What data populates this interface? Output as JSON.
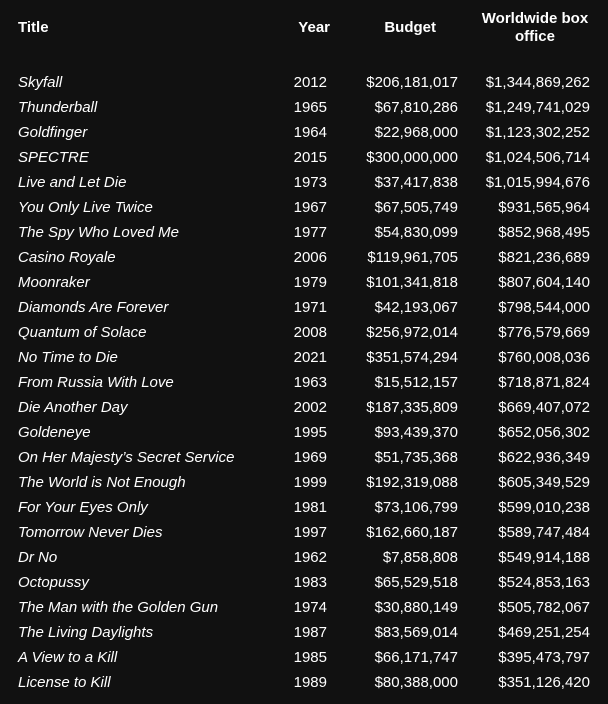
{
  "table": {
    "headers": {
      "title": "Title",
      "year": "Year",
      "budget": "Budget",
      "box_office": "Worldwide box office"
    },
    "rows": [
      {
        "title": "Skyfall",
        "year": "2012",
        "budget": "$206,181,017",
        "box_office": "$1,344,869,262"
      },
      {
        "title": "Thunderball",
        "year": "1965",
        "budget": "$67,810,286",
        "box_office": "$1,249,741,029"
      },
      {
        "title": "Goldfinger",
        "year": "1964",
        "budget": "$22,968,000",
        "box_office": "$1,123,302,252"
      },
      {
        "title": "SPECTRE",
        "year": "2015",
        "budget": "$300,000,000",
        "box_office": "$1,024,506,714"
      },
      {
        "title": "Live and Let Die",
        "year": "1973",
        "budget": "$37,417,838",
        "box_office": "$1,015,994,676"
      },
      {
        "title": "You Only Live Twice",
        "year": "1967",
        "budget": "$67,505,749",
        "box_office": "$931,565,964"
      },
      {
        "title": "The Spy Who Loved Me",
        "year": "1977",
        "budget": "$54,830,099",
        "box_office": "$852,968,495"
      },
      {
        "title": "Casino Royale",
        "year": "2006",
        "budget": "$119,961,705",
        "box_office": "$821,236,689"
      },
      {
        "title": "Moonraker",
        "year": "1979",
        "budget": "$101,341,818",
        "box_office": "$807,604,140"
      },
      {
        "title": "Diamonds Are Forever",
        "year": "1971",
        "budget": "$42,193,067",
        "box_office": "$798,544,000"
      },
      {
        "title": "Quantum of Solace",
        "year": "2008",
        "budget": "$256,972,014",
        "box_office": "$776,579,669"
      },
      {
        "title": "No Time to Die",
        "year": "2021",
        "budget": "$351,574,294",
        "box_office": "$760,008,036"
      },
      {
        "title": "From Russia With Love",
        "year": "1963",
        "budget": "$15,512,157",
        "box_office": "$718,871,824"
      },
      {
        "title": "Die Another Day",
        "year": "2002",
        "budget": "$187,335,809",
        "box_office": "$669,407,072"
      },
      {
        "title": "Goldeneye",
        "year": "1995",
        "budget": "$93,439,370",
        "box_office": "$652,056,302"
      },
      {
        "title": "On Her Majesty’s Secret Service",
        "year": "1969",
        "budget": "$51,735,368",
        "box_office": "$622,936,349"
      },
      {
        "title": "The World is Not Enough",
        "year": "1999",
        "budget": "$192,319,088",
        "box_office": "$605,349,529"
      },
      {
        "title": "For Your Eyes Only",
        "year": "1981",
        "budget": "$73,106,799",
        "box_office": "$599,010,238"
      },
      {
        "title": "Tomorrow Never Dies",
        "year": "1997",
        "budget": "$162,660,187",
        "box_office": "$589,747,484"
      },
      {
        "title": "Dr No",
        "year": "1962",
        "budget": "$7,858,808",
        "box_office": "$549,914,188"
      },
      {
        "title": "Octopussy",
        "year": "1983",
        "budget": "$65,529,518",
        "box_office": "$524,853,163"
      },
      {
        "title": "The Man with the Golden Gun",
        "year": "1974",
        "budget": "$30,880,149",
        "box_office": "$505,782,067"
      },
      {
        "title": "The Living Daylights",
        "year": "1987",
        "budget": "$83,569,014",
        "box_office": "$469,251,254"
      },
      {
        "title": "A View to a Kill",
        "year": "1985",
        "budget": "$66,171,747",
        "box_office": "$395,473,797"
      },
      {
        "title": "License to Kill",
        "year": "1989",
        "budget": "$80,388,000",
        "box_office": "$351,126,420"
      }
    ]
  }
}
